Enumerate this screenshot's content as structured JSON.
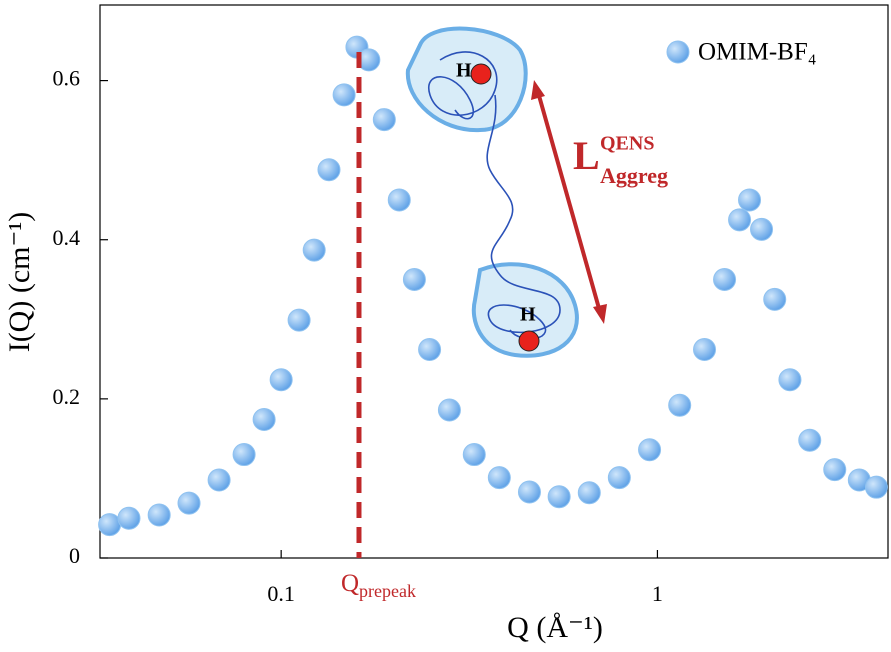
{
  "chart_data": {
    "type": "scatter",
    "x_label": "Q (Å⁻¹)",
    "y_label": "I(Q) (cm⁻¹)",
    "xscale": "log",
    "xlim": [
      0.033,
      4.1
    ],
    "ylim": [
      0,
      0.695
    ],
    "xticks": [
      0.1,
      1
    ],
    "yticks": [
      0,
      0.2,
      0.4,
      0.6
    ],
    "legend_position": "upper right",
    "series": [
      {
        "name": "OMIM-BF₄",
        "color": "#5b9fe6",
        "x": [
          0.035,
          0.0394,
          0.0474,
          0.0569,
          0.0684,
          0.0797,
          0.0901,
          0.1,
          0.1116,
          0.1224,
          0.134,
          0.147,
          0.159,
          0.171,
          0.188,
          0.206,
          0.226,
          0.248,
          0.28,
          0.326,
          0.38,
          0.457,
          0.548,
          0.659,
          0.792,
          0.953,
          1.146,
          1.334,
          1.508,
          1.653,
          1.757,
          1.891,
          2.05,
          2.25,
          2.54,
          2.96,
          3.44,
          3.82
        ],
        "values": [
          0.042,
          0.05,
          0.054,
          0.069,
          0.098,
          0.13,
          0.174,
          0.224,
          0.299,
          0.387,
          0.488,
          0.582,
          0.642,
          0.626,
          0.551,
          0.45,
          0.35,
          0.262,
          0.186,
          0.13,
          0.101,
          0.083,
          0.077,
          0.082,
          0.101,
          0.136,
          0.192,
          0.262,
          0.35,
          0.425,
          0.45,
          0.413,
          0.325,
          0.224,
          0.148,
          0.111,
          0.098,
          0.089
        ]
      }
    ],
    "reference_line": {
      "x": 0.161,
      "color": "#c0282a"
    },
    "annotations": {
      "prepeak": {
        "text": "Q",
        "subscript": "prepeak"
      },
      "length": {
        "text": "L",
        "superscript": "QENS",
        "subscript": "Aggreg"
      },
      "h_top": "H",
      "h_bottom": "H"
    }
  }
}
